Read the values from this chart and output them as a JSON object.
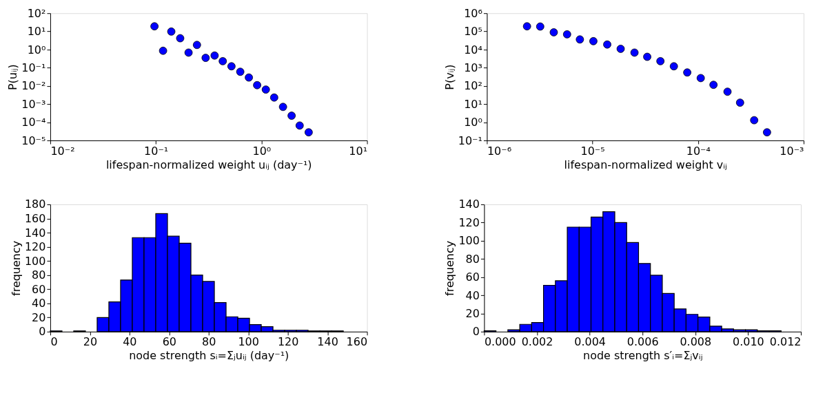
{
  "chart_data": [
    {
      "type": "scatter",
      "xlabel": "lifespan-normalized weight uᵢⱼ  (day⁻¹)",
      "ylabel": "P(uᵢⱼ)",
      "color": "#0000ff",
      "marker": "circle",
      "log": "xy",
      "grid": false,
      "x": [
        0.097,
        0.117,
        0.14,
        0.17,
        0.204,
        0.245,
        0.296,
        0.36,
        0.43,
        0.52,
        0.63,
        0.76,
        0.91,
        1.1,
        1.32,
        1.6,
        1.93,
        2.3,
        2.8
      ],
      "values": [
        19,
        0.86,
        9.8,
        4.2,
        0.68,
        1.8,
        0.35,
        0.47,
        0.23,
        0.12,
        0.06,
        0.029,
        0.011,
        0.0063,
        0.0023,
        0.0007,
        0.00023,
        6.6e-05,
        2.8e-05
      ],
      "xlim": [
        0.01,
        10
      ],
      "ylim": [
        1e-05,
        100
      ],
      "xticks": [
        {
          "value": 0.01,
          "label": "10⁻²"
        },
        {
          "value": 0.1,
          "label": "10⁻¹"
        },
        {
          "value": 1,
          "label": "10⁰"
        },
        {
          "value": 10,
          "label": "10¹"
        }
      ],
      "yticks": [
        {
          "value": 1e-05,
          "label": "10⁻⁵"
        },
        {
          "value": 0.0001,
          "label": "10⁻⁴"
        },
        {
          "value": 0.001,
          "label": "10⁻³"
        },
        {
          "value": 0.01,
          "label": "10⁻²"
        },
        {
          "value": 0.1,
          "label": "10⁻¹"
        },
        {
          "value": 1,
          "label": "10⁰"
        },
        {
          "value": 10,
          "label": "10¹"
        },
        {
          "value": 100,
          "label": "10²"
        }
      ]
    },
    {
      "type": "scatter",
      "xlabel": "lifespan-normalized weight vᵢⱼ",
      "ylabel": "P(vᵢⱼ)",
      "color": "#0000ff",
      "marker": "circle",
      "log": "xy",
      "grid": false,
      "x": [
        2.4e-06,
        3.2e-06,
        4.3e-06,
        5.75e-06,
        7.6e-06,
        1.02e-05,
        1.38e-05,
        1.85e-05,
        2.5e-05,
        3.3e-05,
        4.4e-05,
        5.9e-05,
        7.9e-05,
        0.000106,
        0.00014,
        0.00019,
        0.00025,
        0.00034,
        0.00045
      ],
      "values": [
        190000,
        185000,
        89000,
        69000,
        36000,
        29000,
        19000,
        11000,
        6800,
        4000,
        2300,
        1200,
        550,
        270,
        115,
        48,
        12,
        1.3,
        0.28
      ],
      "xlim": [
        1e-06,
        0.001
      ],
      "ylim": [
        0.1,
        1000000
      ],
      "xticks": [
        {
          "value": 1e-06,
          "label": "10⁻⁶"
        },
        {
          "value": 1e-05,
          "label": "10⁻⁵"
        },
        {
          "value": 0.0001,
          "label": "10⁻⁴"
        },
        {
          "value": 0.001,
          "label": "10⁻³"
        }
      ],
      "yticks": [
        {
          "value": 0.1,
          "label": "10⁻¹"
        },
        {
          "value": 1,
          "label": "10⁰"
        },
        {
          "value": 10,
          "label": "10¹"
        },
        {
          "value": 100,
          "label": "10²"
        },
        {
          "value": 1000,
          "label": "10³"
        },
        {
          "value": 10000,
          "label": "10⁴"
        },
        {
          "value": 100000,
          "label": "10⁵"
        },
        {
          "value": 1000000,
          "label": "10⁶"
        }
      ]
    },
    {
      "type": "histogram",
      "xlabel": "node strength sᵢ=Σⱼuᵢⱼ  (day⁻¹)",
      "ylabel": "frequency",
      "color": "#0000ff",
      "grid": false,
      "bins": [
        0,
        5.92,
        11.84,
        17.76,
        23.68,
        29.6,
        35.52,
        41.44,
        47.36,
        53.28,
        59.2,
        65.12,
        71.04,
        76.96,
        82.88,
        88.8,
        94.72,
        100.64,
        106.56,
        112.48,
        118.4,
        124.32,
        130.24,
        136.16,
        142.08,
        148.0
      ],
      "values": [
        1,
        0,
        1,
        0,
        20,
        42,
        73,
        133,
        133,
        167,
        135,
        125,
        80,
        71,
        41,
        21,
        19,
        10,
        7,
        2,
        2,
        2,
        1,
        1,
        1
      ],
      "xlim": [
        0,
        160
      ],
      "ylim": [
        0,
        180
      ],
      "xticks": [
        0,
        20,
        40,
        60,
        80,
        100,
        120,
        140,
        160
      ],
      "yticks": [
        0,
        20,
        40,
        60,
        80,
        100,
        120,
        140,
        160,
        180
      ]
    },
    {
      "type": "histogram",
      "xlabel": "node strength s′ᵢ=Σⱼvᵢⱼ",
      "ylabel": "frequency",
      "color": "#0000ff",
      "grid": false,
      "bins": [
        0,
        0.00045,
        0.0009,
        0.00135,
        0.0018,
        0.00225,
        0.0027,
        0.00315,
        0.0036,
        0.00405,
        0.0045,
        0.00495,
        0.0054,
        0.00585,
        0.0063,
        0.00675,
        0.0072,
        0.00765,
        0.0081,
        0.00855,
        0.009,
        0.00945,
        0.0099,
        0.01035,
        0.0108,
        0.01125
      ],
      "values": [
        1,
        0,
        2,
        8,
        10,
        51,
        56,
        115,
        115,
        126,
        132,
        120,
        98,
        75,
        62,
        42,
        25,
        19,
        16,
        6,
        3,
        2,
        2,
        1,
        1
      ],
      "xlim": [
        0,
        0.012
      ],
      "ylim": [
        0,
        140
      ],
      "xticks": [
        {
          "value": 0,
          "label": "0.000"
        },
        {
          "value": 0.002,
          "label": "0.002"
        },
        {
          "value": 0.004,
          "label": "0.004"
        },
        {
          "value": 0.006,
          "label": "0.006"
        },
        {
          "value": 0.008,
          "label": "0.008"
        },
        {
          "value": 0.01,
          "label": "0.010"
        },
        {
          "value": 0.012,
          "label": "0.012"
        }
      ],
      "yticks": [
        0,
        20,
        40,
        60,
        80,
        100,
        120,
        140
      ]
    }
  ]
}
